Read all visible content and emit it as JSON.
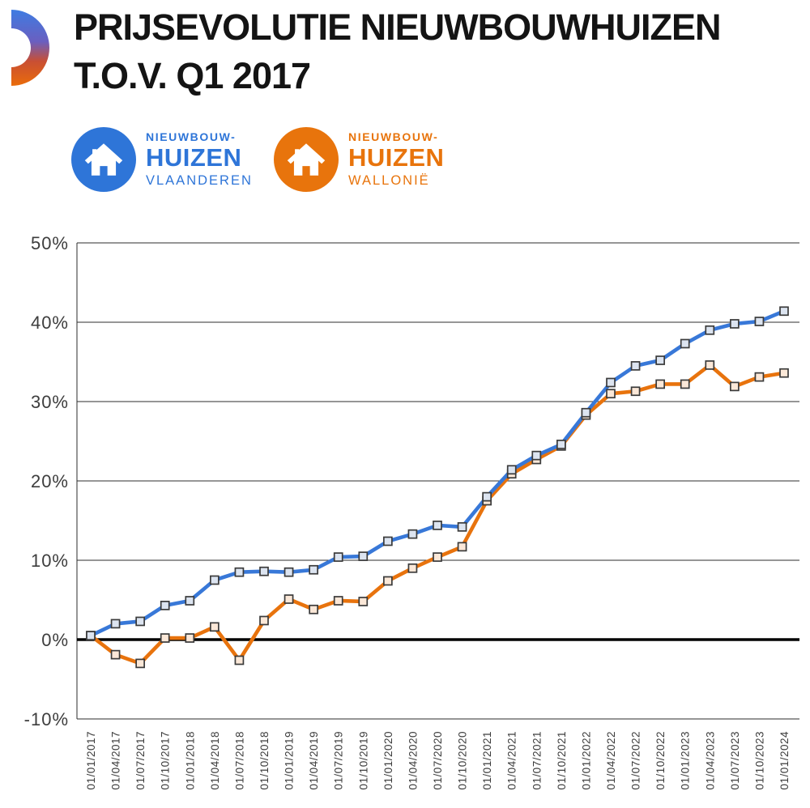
{
  "header": {
    "title_line1": "PRIJSEVOLUTIE NIEUWBOUWHUIZEN",
    "title_line2": "T.O.V. Q1 2017"
  },
  "colors": {
    "vlaanderen_blue": "#2E75D8",
    "wallonie_orange": "#E8740C",
    "line_blue": "#3878D8",
    "line_orange": "#E8730D",
    "marker_border": "#3B3B3B",
    "axis_text": "#3D3D3D",
    "grid": "#2E2E2E",
    "zero_line": "#000000"
  },
  "legend": [
    {
      "line1": "NIEUWBOUW-",
      "line2": "HUIZEN",
      "line3": "VLAANDEREN",
      "color": "#2E75D8"
    },
    {
      "line1": "NIEUWBOUW-",
      "line2": "HUIZEN",
      "line3": "WALLONIË",
      "color": "#E8740C"
    }
  ],
  "chart_data": {
    "type": "line",
    "title": "Prijsevolutie nieuwbouwhuizen t.o.v. Q1 2017",
    "x": [
      "01/01/2017",
      "01/04/2017",
      "01/07/2017",
      "01/10/2017",
      "01/01/2018",
      "01/04/2018",
      "01/07/2018",
      "01/10/2018",
      "01/01/2019",
      "01/04/2019",
      "01/07/2019",
      "01/10/2019",
      "01/01/2020",
      "01/04/2020",
      "01/07/2020",
      "01/10/2020",
      "01/01/2021",
      "01/04/2021",
      "01/07/2021",
      "01/10/2021",
      "01/01/2022",
      "01/04/2022",
      "01/07/2022",
      "01/10/2022",
      "01/01/2023",
      "01/04/2023",
      "01/07/2023",
      "01/10/2023",
      "01/01/2024"
    ],
    "series": [
      {
        "name": "Nieuwbouwhuizen Vlaanderen",
        "color": "#3878D8",
        "marker_fill": "#DCE4F0",
        "values": [
          0.5,
          2.0,
          2.3,
          4.3,
          4.9,
          7.5,
          8.5,
          8.6,
          8.5,
          8.8,
          10.4,
          10.5,
          12.4,
          13.3,
          14.4,
          14.2,
          18.0,
          21.4,
          23.2,
          24.6,
          28.6,
          32.4,
          34.5,
          35.2,
          37.3,
          39.0,
          39.8,
          40.1,
          41.4
        ]
      },
      {
        "name": "Nieuwbouwhuizen Wallonië",
        "color": "#E8730D",
        "marker_fill": "#FBE8D8",
        "values": [
          0.5,
          -1.9,
          -3.0,
          0.2,
          0.2,
          1.6,
          -2.6,
          2.4,
          5.1,
          3.8,
          4.9,
          4.8,
          7.4,
          9.0,
          10.4,
          11.7,
          17.5,
          20.9,
          22.7,
          24.4,
          28.3,
          31.0,
          31.3,
          32.2,
          32.2,
          34.6,
          31.9,
          33.1,
          33.6
        ]
      }
    ],
    "ylim": [
      -10,
      50
    ],
    "yticks": [
      50,
      40,
      30,
      20,
      10,
      0,
      -10
    ],
    "ytick_format": "{v}%",
    "grid": true,
    "zero_line_bold": true,
    "legend_position": "top-left badges",
    "x_label_rotation": -90
  }
}
